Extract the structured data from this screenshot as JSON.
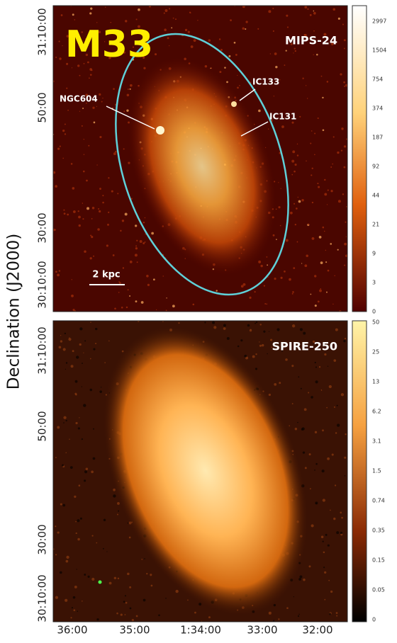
{
  "figure": {
    "y_axis_label": "Declination (J2000)",
    "x_ticks": [
      "36:00",
      "35:00",
      "1:34:00",
      "33:00",
      "32:00"
    ],
    "top_panel": {
      "object": "M33",
      "band": "MIPS-24",
      "annotations": [
        "IC133",
        "IC131",
        "NGC604"
      ],
      "scale_bar": "2 kpc",
      "y_ticks": [
        "31:10:00",
        "50:00",
        "30:00",
        "30:10:00"
      ],
      "colorbar_ticks": [
        "2997",
        "1504",
        "754",
        "374",
        "187",
        "92",
        "44",
        "21",
        "9",
        "3",
        "0"
      ]
    },
    "bottom_panel": {
      "band": "SPIRE-250",
      "y_ticks": [
        "31:10:00",
        "50:00",
        "30:00",
        "30:10:00"
      ],
      "colorbar_ticks": [
        "50",
        "25",
        "13",
        "6.2",
        "3.1",
        "1.5",
        "0.74",
        "0.35",
        "0.15",
        "0.05",
        "0"
      ]
    }
  }
}
